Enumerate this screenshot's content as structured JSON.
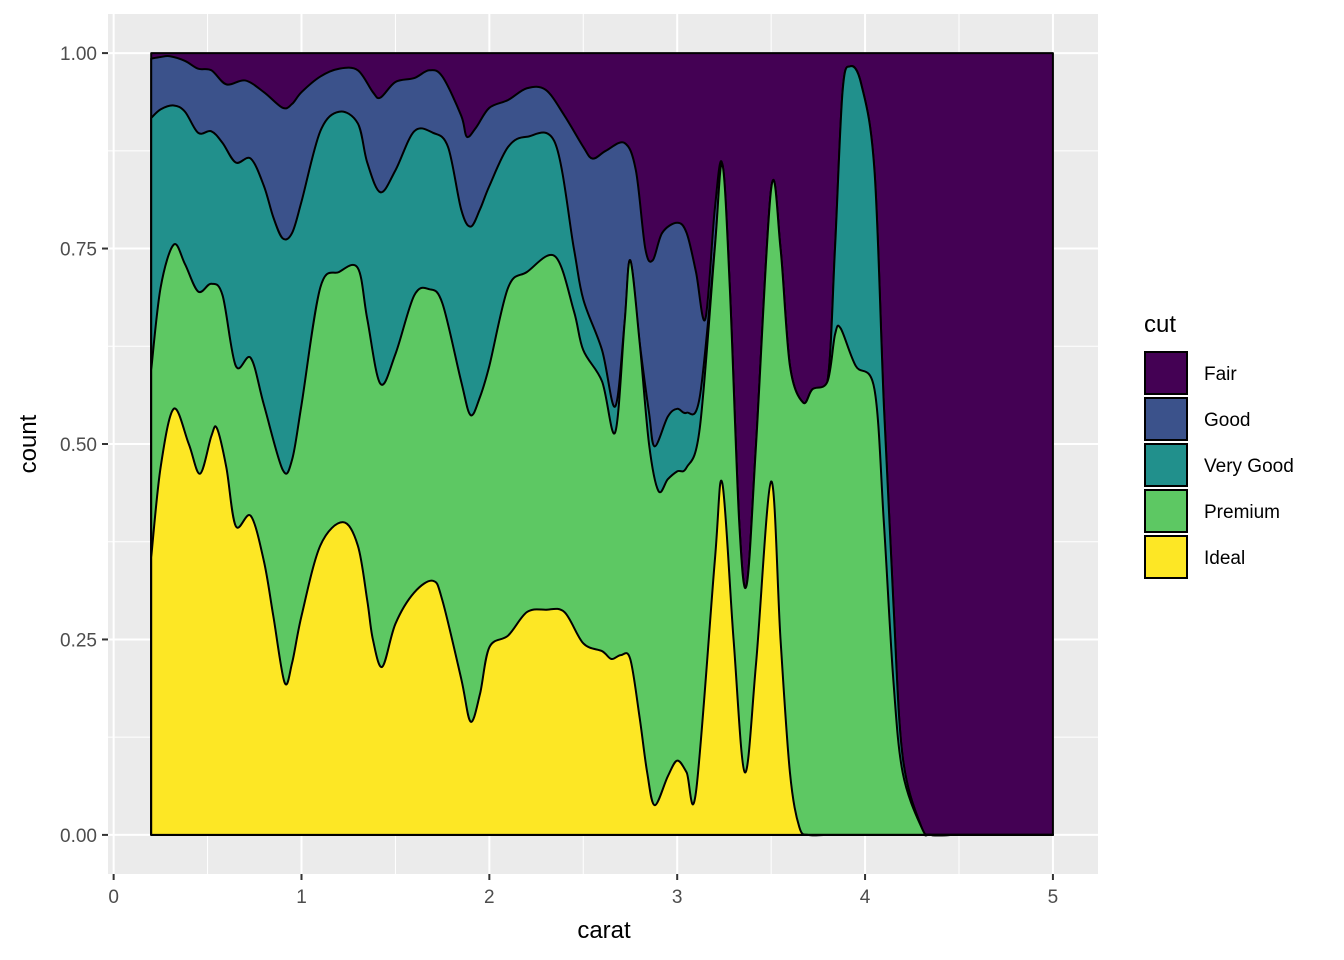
{
  "chart_data": {
    "type": "area",
    "xlabel": "carat",
    "ylabel": "count",
    "xlim": [
      -0.03,
      5.24
    ],
    "ylim": [
      -0.05,
      1.05
    ],
    "x_ticks": [
      0,
      1,
      2,
      3,
      4,
      5
    ],
    "x_tick_labels": [
      "0",
      "1",
      "2",
      "3",
      "4",
      "5"
    ],
    "y_ticks": [
      0,
      0.25,
      0.5,
      0.75,
      1.0
    ],
    "y_tick_labels": [
      "0.00",
      "0.25",
      "0.50",
      "0.75",
      "1.00"
    ],
    "grid": true,
    "legend": {
      "title": "cut",
      "placement": "right"
    },
    "stack_order": [
      "Ideal",
      "Premium",
      "Very Good",
      "Good",
      "Fair"
    ],
    "series": [
      {
        "name": "Ideal",
        "color": "#FDE725",
        "points": [
          [
            0.2,
            0.355
          ],
          [
            0.25,
            0.47
          ],
          [
            0.32,
            0.545
          ],
          [
            0.4,
            0.5
          ],
          [
            0.46,
            0.462
          ],
          [
            0.52,
            0.51
          ],
          [
            0.55,
            0.52
          ],
          [
            0.6,
            0.47
          ],
          [
            0.65,
            0.395
          ],
          [
            0.73,
            0.408
          ],
          [
            0.8,
            0.35
          ],
          [
            0.85,
            0.28
          ],
          [
            0.91,
            0.195
          ],
          [
            0.95,
            0.22
          ],
          [
            1.0,
            0.28
          ],
          [
            1.1,
            0.37
          ],
          [
            1.22,
            0.4
          ],
          [
            1.3,
            0.37
          ],
          [
            1.35,
            0.3
          ],
          [
            1.38,
            0.25
          ],
          [
            1.43,
            0.215
          ],
          [
            1.5,
            0.27
          ],
          [
            1.6,
            0.31
          ],
          [
            1.7,
            0.325
          ],
          [
            1.75,
            0.3
          ],
          [
            1.85,
            0.2
          ],
          [
            1.9,
            0.145
          ],
          [
            1.95,
            0.18
          ],
          [
            2.0,
            0.24
          ],
          [
            2.1,
            0.255
          ],
          [
            2.2,
            0.285
          ],
          [
            2.3,
            0.288
          ],
          [
            2.4,
            0.285
          ],
          [
            2.5,
            0.245
          ],
          [
            2.6,
            0.235
          ],
          [
            2.65,
            0.225
          ],
          [
            2.7,
            0.23
          ],
          [
            2.75,
            0.225
          ],
          [
            2.8,
            0.15
          ],
          [
            2.84,
            0.08
          ],
          [
            2.88,
            0.038
          ],
          [
            2.95,
            0.075
          ],
          [
            3.0,
            0.095
          ],
          [
            3.05,
            0.08
          ],
          [
            3.1,
            0.055
          ],
          [
            3.2,
            0.35
          ],
          [
            3.24,
            0.45
          ],
          [
            3.3,
            0.25
          ],
          [
            3.36,
            0.08
          ],
          [
            3.42,
            0.22
          ],
          [
            3.5,
            0.452
          ],
          [
            3.55,
            0.25
          ],
          [
            3.6,
            0.08
          ],
          [
            3.65,
            0.01
          ],
          [
            3.7,
            0.0
          ],
          [
            3.8,
            0.0
          ],
          [
            4.0,
            0.0
          ],
          [
            4.2,
            0.0
          ],
          [
            4.5,
            0.0
          ],
          [
            5.0,
            0.0
          ]
        ]
      },
      {
        "name": "Premium",
        "color": "#5DC863",
        "points": [
          [
            0.2,
            0.595
          ],
          [
            0.25,
            0.7
          ],
          [
            0.32,
            0.755
          ],
          [
            0.38,
            0.73
          ],
          [
            0.45,
            0.695
          ],
          [
            0.52,
            0.705
          ],
          [
            0.58,
            0.69
          ],
          [
            0.65,
            0.6
          ],
          [
            0.73,
            0.61
          ],
          [
            0.8,
            0.55
          ],
          [
            0.9,
            0.467
          ],
          [
            0.95,
            0.48
          ],
          [
            1.0,
            0.55
          ],
          [
            1.1,
            0.7
          ],
          [
            1.2,
            0.72
          ],
          [
            1.3,
            0.725
          ],
          [
            1.35,
            0.66
          ],
          [
            1.42,
            0.577
          ],
          [
            1.5,
            0.615
          ],
          [
            1.6,
            0.69
          ],
          [
            1.68,
            0.698
          ],
          [
            1.75,
            0.68
          ],
          [
            1.85,
            0.58
          ],
          [
            1.9,
            0.537
          ],
          [
            1.95,
            0.56
          ],
          [
            2.0,
            0.6
          ],
          [
            2.1,
            0.7
          ],
          [
            2.2,
            0.72
          ],
          [
            2.35,
            0.74
          ],
          [
            2.45,
            0.67
          ],
          [
            2.5,
            0.62
          ],
          [
            2.6,
            0.58
          ],
          [
            2.67,
            0.515
          ],
          [
            2.72,
            0.655
          ],
          [
            2.75,
            0.735
          ],
          [
            2.8,
            0.63
          ],
          [
            2.85,
            0.5
          ],
          [
            2.9,
            0.44
          ],
          [
            2.95,
            0.455
          ],
          [
            3.0,
            0.465
          ],
          [
            3.05,
            0.47
          ],
          [
            3.12,
            0.52
          ],
          [
            3.2,
            0.75
          ],
          [
            3.24,
            0.858
          ],
          [
            3.28,
            0.7
          ],
          [
            3.33,
            0.4
          ],
          [
            3.37,
            0.32
          ],
          [
            3.42,
            0.5
          ],
          [
            3.5,
            0.826
          ],
          [
            3.55,
            0.75
          ],
          [
            3.6,
            0.6
          ],
          [
            3.67,
            0.553
          ],
          [
            3.72,
            0.57
          ],
          [
            3.8,
            0.58
          ],
          [
            3.84,
            0.64
          ],
          [
            3.87,
            0.648
          ],
          [
            3.95,
            0.6
          ],
          [
            4.05,
            0.57
          ],
          [
            4.1,
            0.4
          ],
          [
            4.15,
            0.2
          ],
          [
            4.2,
            0.08
          ],
          [
            4.3,
            0.01
          ],
          [
            4.35,
            0.0
          ],
          [
            4.5,
            0.0
          ],
          [
            5.0,
            0.0
          ]
        ]
      },
      {
        "name": "Very Good",
        "color": "#21908C",
        "points": [
          [
            0.2,
            0.917
          ],
          [
            0.25,
            0.928
          ],
          [
            0.32,
            0.933
          ],
          [
            0.38,
            0.925
          ],
          [
            0.45,
            0.898
          ],
          [
            0.52,
            0.9
          ],
          [
            0.58,
            0.885
          ],
          [
            0.65,
            0.86
          ],
          [
            0.73,
            0.865
          ],
          [
            0.8,
            0.83
          ],
          [
            0.85,
            0.79
          ],
          [
            0.9,
            0.763
          ],
          [
            0.95,
            0.77
          ],
          [
            1.0,
            0.81
          ],
          [
            1.1,
            0.9
          ],
          [
            1.2,
            0.925
          ],
          [
            1.3,
            0.91
          ],
          [
            1.35,
            0.86
          ],
          [
            1.42,
            0.822
          ],
          [
            1.5,
            0.85
          ],
          [
            1.6,
            0.9
          ],
          [
            1.7,
            0.898
          ],
          [
            1.78,
            0.88
          ],
          [
            1.85,
            0.8
          ],
          [
            1.9,
            0.778
          ],
          [
            1.95,
            0.8
          ],
          [
            2.0,
            0.83
          ],
          [
            2.1,
            0.88
          ],
          [
            2.2,
            0.893
          ],
          [
            2.35,
            0.885
          ],
          [
            2.45,
            0.75
          ],
          [
            2.5,
            0.685
          ],
          [
            2.6,
            0.62
          ],
          [
            2.67,
            0.548
          ],
          [
            2.72,
            0.655
          ],
          [
            2.75,
            0.735
          ],
          [
            2.8,
            0.63
          ],
          [
            2.85,
            0.54
          ],
          [
            2.88,
            0.497
          ],
          [
            2.95,
            0.535
          ],
          [
            3.0,
            0.545
          ],
          [
            3.05,
            0.54
          ],
          [
            3.12,
            0.56
          ],
          [
            3.2,
            0.75
          ],
          [
            3.24,
            0.858
          ],
          [
            3.28,
            0.7
          ],
          [
            3.33,
            0.4
          ],
          [
            3.37,
            0.32
          ],
          [
            3.42,
            0.5
          ],
          [
            3.5,
            0.826
          ],
          [
            3.55,
            0.75
          ],
          [
            3.6,
            0.6
          ],
          [
            3.67,
            0.553
          ],
          [
            3.72,
            0.57
          ],
          [
            3.8,
            0.58
          ],
          [
            3.84,
            0.75
          ],
          [
            3.88,
            0.95
          ],
          [
            3.92,
            0.983
          ],
          [
            3.98,
            0.96
          ],
          [
            4.05,
            0.85
          ],
          [
            4.1,
            0.55
          ],
          [
            4.15,
            0.3
          ],
          [
            4.2,
            0.1
          ],
          [
            4.3,
            0.01
          ],
          [
            4.35,
            0.0
          ],
          [
            4.5,
            0.0
          ],
          [
            5.0,
            0.0
          ]
        ]
      },
      {
        "name": "Good",
        "color": "#3B528B",
        "points": [
          [
            0.2,
            0.993
          ],
          [
            0.25,
            0.995
          ],
          [
            0.3,
            0.996
          ],
          [
            0.38,
            0.99
          ],
          [
            0.45,
            0.98
          ],
          [
            0.52,
            0.978
          ],
          [
            0.6,
            0.96
          ],
          [
            0.7,
            0.965
          ],
          [
            0.8,
            0.95
          ],
          [
            0.9,
            0.93
          ],
          [
            0.95,
            0.935
          ],
          [
            1.0,
            0.95
          ],
          [
            1.1,
            0.97
          ],
          [
            1.2,
            0.98
          ],
          [
            1.3,
            0.978
          ],
          [
            1.38,
            0.95
          ],
          [
            1.42,
            0.943
          ],
          [
            1.5,
            0.963
          ],
          [
            1.6,
            0.968
          ],
          [
            1.68,
            0.978
          ],
          [
            1.75,
            0.97
          ],
          [
            1.85,
            0.92
          ],
          [
            1.88,
            0.893
          ],
          [
            1.93,
            0.905
          ],
          [
            2.0,
            0.93
          ],
          [
            2.1,
            0.94
          ],
          [
            2.2,
            0.955
          ],
          [
            2.3,
            0.953
          ],
          [
            2.4,
            0.92
          ],
          [
            2.5,
            0.88
          ],
          [
            2.55,
            0.865
          ],
          [
            2.62,
            0.875
          ],
          [
            2.72,
            0.885
          ],
          [
            2.78,
            0.85
          ],
          [
            2.83,
            0.75
          ],
          [
            2.87,
            0.735
          ],
          [
            2.92,
            0.77
          ],
          [
            3.0,
            0.783
          ],
          [
            3.05,
            0.77
          ],
          [
            3.1,
            0.72
          ],
          [
            3.15,
            0.66
          ],
          [
            3.2,
            0.8
          ],
          [
            3.24,
            0.858
          ],
          [
            3.28,
            0.7
          ],
          [
            3.33,
            0.4
          ],
          [
            3.37,
            0.32
          ],
          [
            3.42,
            0.5
          ],
          [
            3.5,
            0.826
          ],
          [
            3.55,
            0.75
          ],
          [
            3.6,
            0.6
          ],
          [
            3.67,
            0.553
          ],
          [
            3.72,
            0.57
          ],
          [
            3.8,
            0.58
          ],
          [
            3.84,
            0.75
          ],
          [
            3.88,
            0.95
          ],
          [
            3.92,
            0.983
          ],
          [
            3.98,
            0.96
          ],
          [
            4.05,
            0.85
          ],
          [
            4.1,
            0.55
          ],
          [
            4.15,
            0.3
          ],
          [
            4.2,
            0.1
          ],
          [
            4.3,
            0.01
          ],
          [
            4.35,
            0.0
          ],
          [
            4.5,
            0.0
          ],
          [
            5.0,
            0.0
          ]
        ]
      },
      {
        "name": "Fair",
        "color": "#440154",
        "points": [
          [
            0.2,
            1.0
          ],
          [
            5.0,
            1.0
          ]
        ]
      }
    ]
  }
}
